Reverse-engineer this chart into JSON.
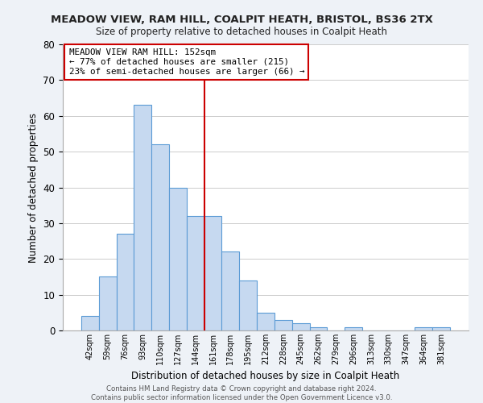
{
  "title": "MEADOW VIEW, RAM HILL, COALPIT HEATH, BRISTOL, BS36 2TX",
  "subtitle": "Size of property relative to detached houses in Coalpit Heath",
  "xlabel": "Distribution of detached houses by size in Coalpit Heath",
  "ylabel": "Number of detached properties",
  "bar_labels": [
    "42sqm",
    "59sqm",
    "76sqm",
    "93sqm",
    "110sqm",
    "127sqm",
    "144sqm",
    "161sqm",
    "178sqm",
    "195sqm",
    "212sqm",
    "228sqm",
    "245sqm",
    "262sqm",
    "279sqm",
    "296sqm",
    "313sqm",
    "330sqm",
    "347sqm",
    "364sqm",
    "381sqm"
  ],
  "bar_values": [
    4,
    15,
    27,
    63,
    52,
    40,
    32,
    32,
    22,
    14,
    5,
    3,
    2,
    1,
    0,
    1,
    0,
    0,
    0,
    1,
    1
  ],
  "bar_color": "#c6d9f0",
  "bar_edge_color": "#5b9bd5",
  "highlight_line_color": "#cc0000",
  "ylim": [
    0,
    80
  ],
  "yticks": [
    0,
    10,
    20,
    30,
    40,
    50,
    60,
    70,
    80
  ],
  "annotation_title": "MEADOW VIEW RAM HILL: 152sqm",
  "annotation_line1": "← 77% of detached houses are smaller (215)",
  "annotation_line2": "23% of semi-detached houses are larger (66) →",
  "annotation_box_color": "#ffffff",
  "annotation_box_edge": "#cc0000",
  "footer_line1": "Contains HM Land Registry data © Crown copyright and database right 2024.",
  "footer_line2": "Contains public sector information licensed under the Open Government Licence v3.0.",
  "background_color": "#eef2f7",
  "plot_background": "#ffffff",
  "grid_color": "#cccccc"
}
